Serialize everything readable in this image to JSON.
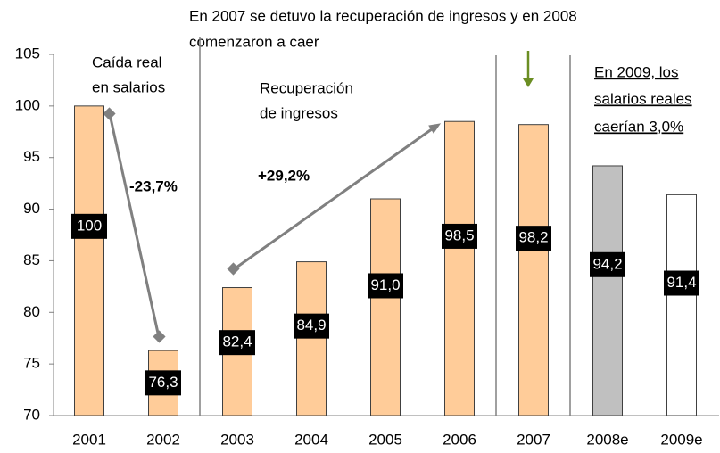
{
  "chart_data": {
    "type": "bar",
    "title": [
      "En 2007 se detuvo la recuperación de ingresos y en 2008",
      "comenzaron a caer"
    ],
    "categories": [
      "2001",
      "2002",
      "2003",
      "2004",
      "2005",
      "2006",
      "2007",
      "2008e",
      "2009e"
    ],
    "values": [
      100,
      76.3,
      82.4,
      84.9,
      91.0,
      98.5,
      98.2,
      94.2,
      91.4
    ],
    "value_labels": [
      "100",
      "76,3",
      "82,4",
      "84,9",
      "91,0",
      "98,5",
      "98,2",
      "94,2",
      "91,4"
    ],
    "colors": [
      "#FFCC99",
      "#FFCC99",
      "#FFCC99",
      "#FFCC99",
      "#FFCC99",
      "#FFCC99",
      "#FFCC99",
      "#C0C0C0",
      "#FFFFFF"
    ],
    "ylim": [
      70,
      105
    ],
    "yticks": [
      70,
      75,
      80,
      85,
      90,
      95,
      100,
      105
    ],
    "annotations": {
      "drop_label": [
        "Caída real",
        "en salarios"
      ],
      "drop_change": "-23,7%",
      "recovery_label": [
        "Recuperación",
        "de ingresos"
      ],
      "recovery_change": "+29,2%",
      "forecast_note": [
        "En 2009, los",
        "salarios reales",
        "caerían 3,0%"
      ]
    }
  }
}
